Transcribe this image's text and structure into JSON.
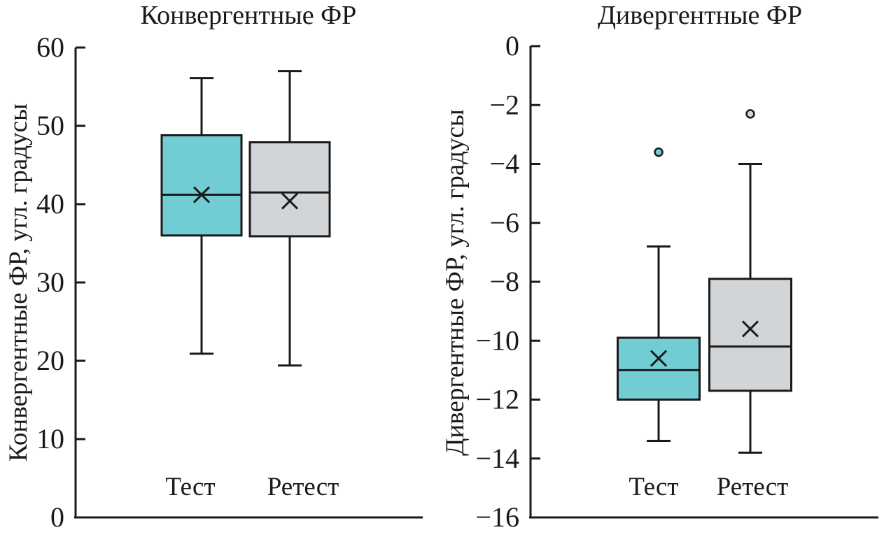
{
  "chart_data": [
    {
      "type": "box",
      "title": "Конвергентные ФР",
      "xlabel": "",
      "ylabel": "Конвергентные ФР, угл. градусы",
      "ylim": [
        0,
        60
      ],
      "yticks": [
        0,
        10,
        20,
        30,
        40,
        50,
        60
      ],
      "ytick_labels": [
        "0",
        "10",
        "20",
        "30",
        "40",
        "50",
        "60"
      ],
      "grid": false,
      "categories": [
        "Тест",
        "Ретест"
      ],
      "series": [
        {
          "name": "Тест",
          "color": "#72ccd4",
          "whisker_low": 20.9,
          "q1": 36.0,
          "median": 41.2,
          "q3": 48.8,
          "whisker_high": 56.1,
          "mean": 41.2,
          "outliers": []
        },
        {
          "name": "Ретест",
          "color": "#d2d5d8",
          "whisker_low": 19.4,
          "q1": 35.9,
          "median": 41.5,
          "q3": 47.9,
          "whisker_high": 57.0,
          "mean": 40.4,
          "outliers": []
        }
      ]
    },
    {
      "type": "box",
      "title": "Дивергентные ФР",
      "xlabel": "",
      "ylabel": "Дивергентные ФР, угл. градусы",
      "ylim": [
        -16,
        0
      ],
      "yticks": [
        -16,
        -14,
        -12,
        -10,
        -8,
        -6,
        -4,
        -2,
        0
      ],
      "ytick_labels": [
        "−16",
        "−14",
        "−12",
        "−10",
        "−8",
        "−6",
        "−4",
        "−2",
        "0"
      ],
      "grid": false,
      "categories": [
        "Тест",
        "Ретест"
      ],
      "series": [
        {
          "name": "Тест",
          "color": "#72ccd4",
          "whisker_low": -13.4,
          "q1": -12.0,
          "median": -11.0,
          "q3": -9.9,
          "whisker_high": -6.8,
          "mean": -10.6,
          "outliers": [
            -3.6
          ]
        },
        {
          "name": "Ретест",
          "color": "#d2d5d8",
          "whisker_low": -13.8,
          "q1": -11.7,
          "median": -10.2,
          "q3": -7.9,
          "whisker_high": -4.0,
          "mean": -9.6,
          "outliers": [
            -2.3
          ]
        }
      ]
    }
  ]
}
